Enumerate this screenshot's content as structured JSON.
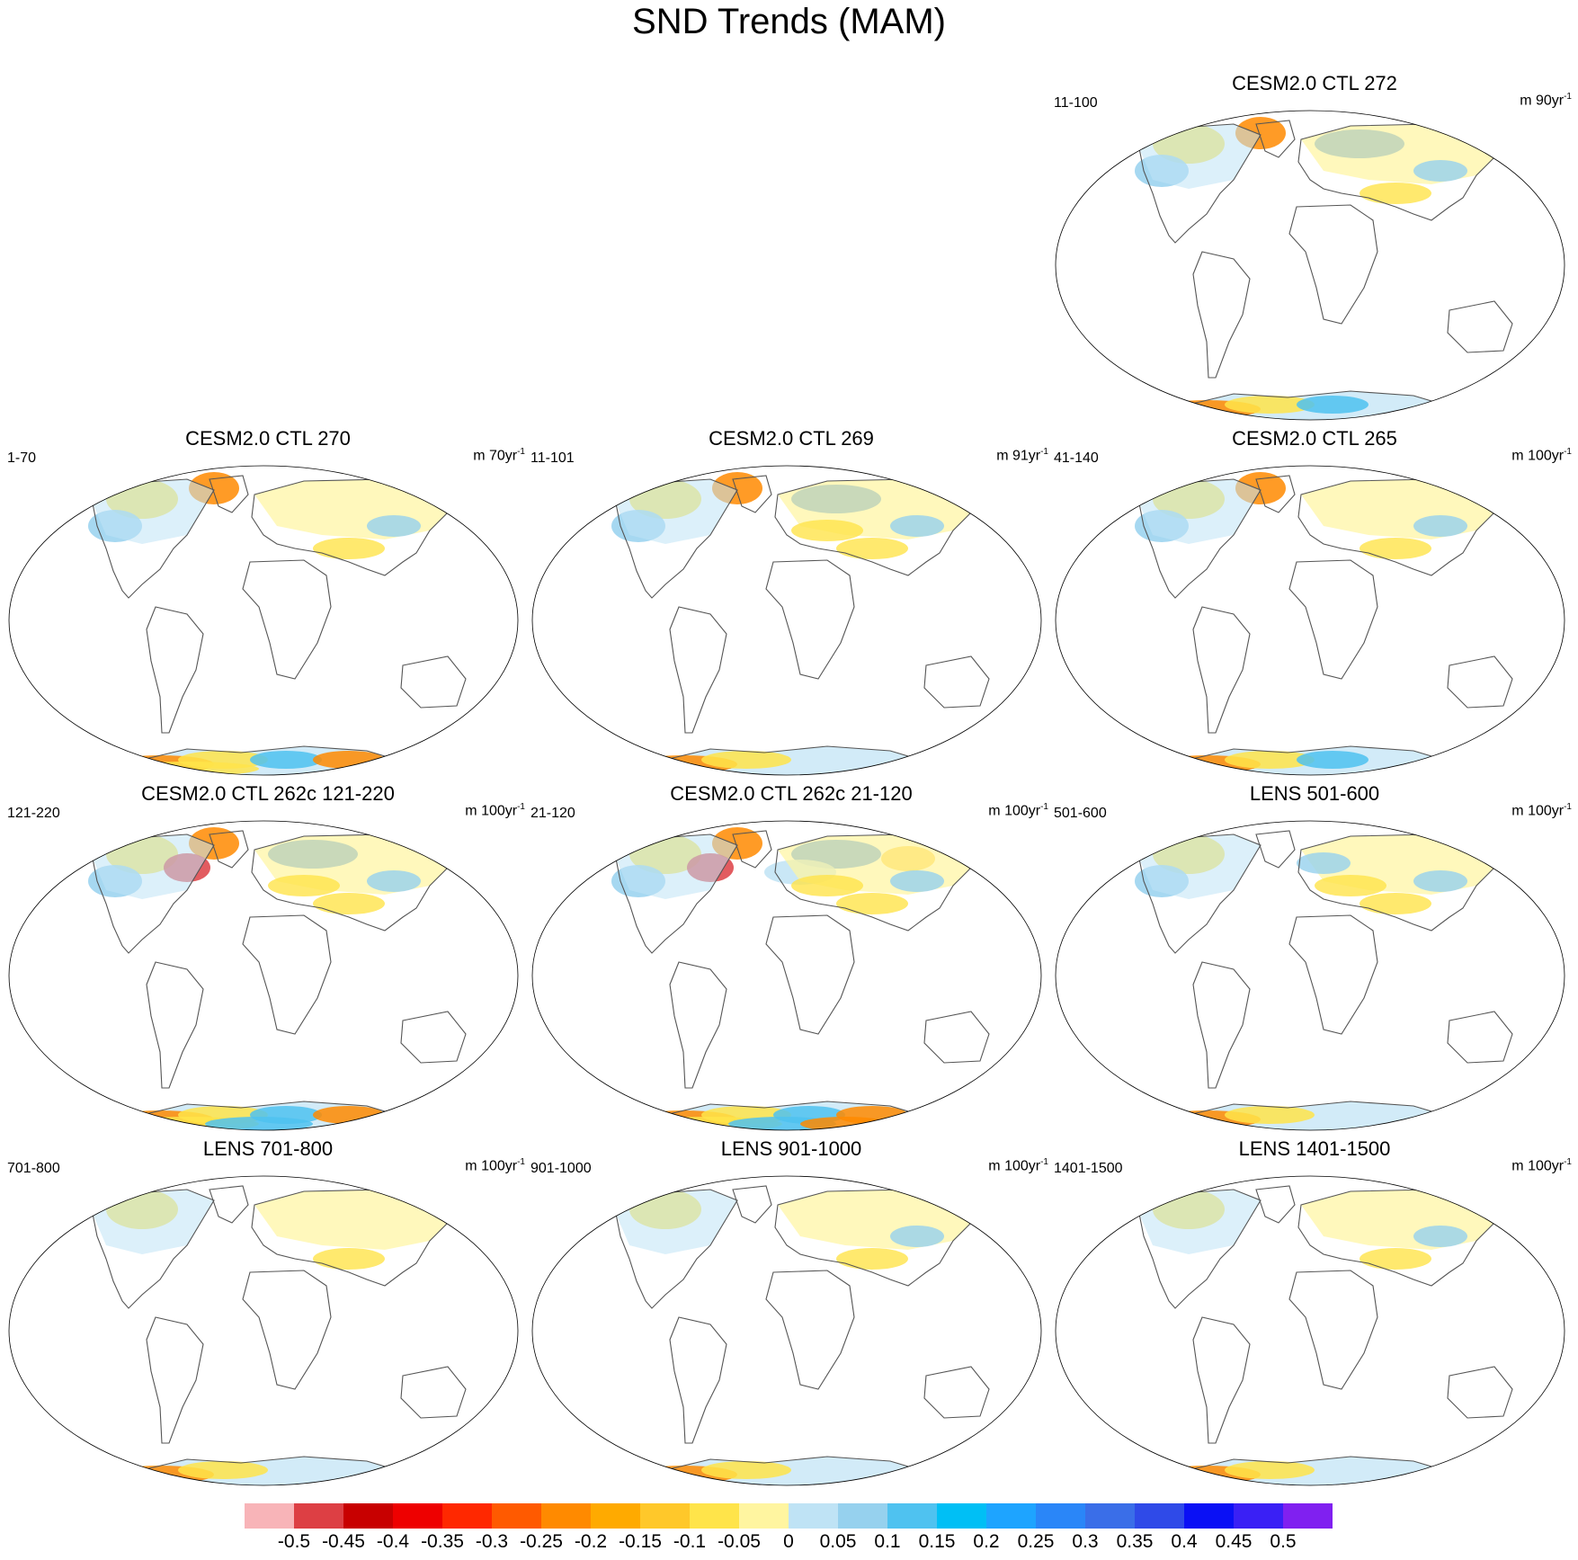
{
  "title": "SND Trends (MAM)",
  "panels": [
    {
      "title": "CESM2.0 CTL 272",
      "left": "11-100",
      "right": "m 90yr",
      "right_sup": "-1",
      "patches": {
        "n": 4,
        "s": 3,
        "e": 2
      }
    },
    {
      "title": "CESM2.0 CTL 270",
      "left": "1-70",
      "right": "m 70yr",
      "right_sup": "-1",
      "patches": {
        "n": 3,
        "s": 5,
        "e": 2
      }
    },
    {
      "title": "CESM2.0 CTL 269",
      "left": "11-101",
      "right": "m 91yr",
      "right_sup": "-1",
      "patches": {
        "n": 4,
        "s": 2,
        "e": 3
      }
    },
    {
      "title": "CESM2.0 CTL 265",
      "left": "41-140",
      "right": "m 100yr",
      "right_sup": "-1",
      "patches": {
        "n": 3,
        "s": 3,
        "e": 2
      }
    },
    {
      "title": "CESM2.0 CTL 262c 121-220",
      "left": "121-220",
      "right": "m 100yr",
      "right_sup": "-1",
      "patches": {
        "n": 5,
        "s": 6,
        "e": 3
      }
    },
    {
      "title": "CESM2.0 CTL 262c 21-120",
      "left": "21-120",
      "right": "m 100yr",
      "right_sup": "-1",
      "patches": {
        "n": 7,
        "s": 7,
        "e": 3
      }
    },
    {
      "title": "LENS 501-600",
      "left": "501-600",
      "right": "m 100yr",
      "right_sup": "-1",
      "patches": {
        "n": 2,
        "s": 2,
        "e": 4
      }
    },
    {
      "title": "LENS 701-800",
      "left": "701-800",
      "right": "m 100yr",
      "right_sup": "-1",
      "patches": {
        "n": 1,
        "s": 2,
        "e": 1
      }
    },
    {
      "title": "LENS 901-1000",
      "left": "901-1000",
      "right": "m 100yr",
      "right_sup": "-1",
      "patches": {
        "n": 1,
        "s": 2,
        "e": 2
      }
    },
    {
      "title": "LENS 1401-1500",
      "left": "1401-1500",
      "right": "m 100yr",
      "right_sup": "-1",
      "patches": {
        "n": 1,
        "s": 2,
        "e": 2
      }
    }
  ],
  "colorbar": {
    "colors": [
      "#f8b4b8",
      "#dd3f44",
      "#c80000",
      "#ee0000",
      "#ff2800",
      "#ff5a00",
      "#ff8a00",
      "#ffaa00",
      "#ffc82a",
      "#ffe44a",
      "#fff5a0",
      "#bfe3f5",
      "#96d1ee",
      "#4fc2f0",
      "#00bff5",
      "#1ea4ff",
      "#2a86f8",
      "#3a6ee8",
      "#2f4ae8",
      "#0a10f5",
      "#3a20f5",
      "#8020f0"
    ],
    "labels": [
      "-0.5",
      "-0.45",
      "-0.4",
      "-0.35",
      "-0.3",
      "-0.25",
      "-0.2",
      "-0.15",
      "-0.1",
      "-0.05",
      "0",
      "0.05",
      "0.1",
      "0.15",
      "0.2",
      "0.25",
      "0.3",
      "0.35",
      "0.4",
      "0.45",
      "0.5"
    ]
  }
}
